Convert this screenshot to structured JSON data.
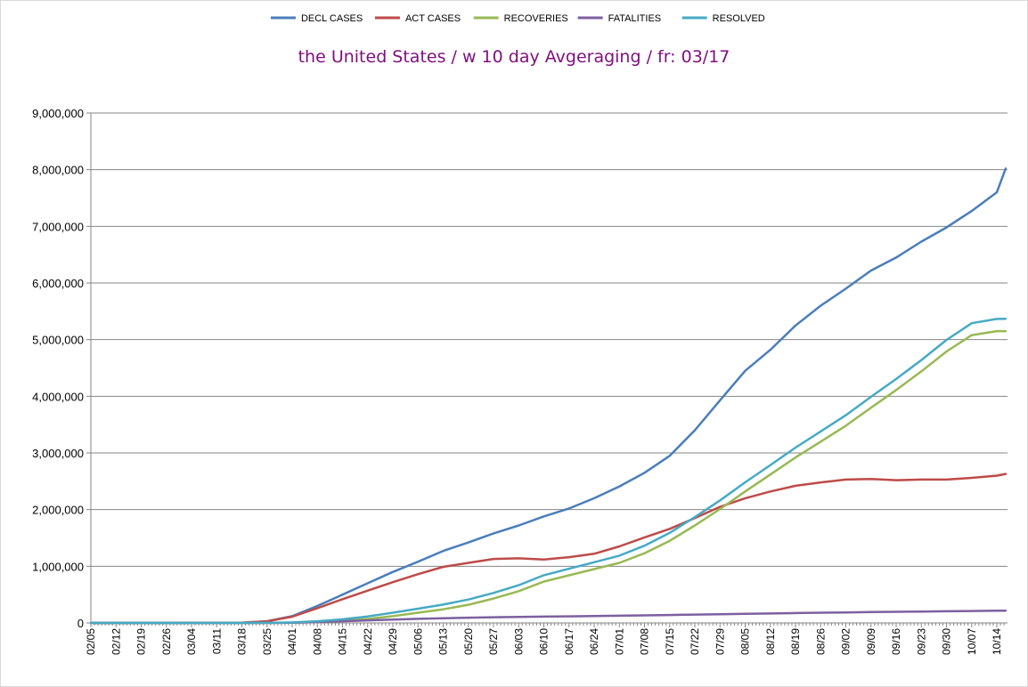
{
  "chart_data": {
    "type": "line",
    "title": "the United States / w 10 day Avgeraging / fr: 03/17",
    "title_color": "#7f0f7e",
    "xlabel": "",
    "ylabel": "",
    "ylim": [
      0,
      9000000
    ],
    "yticks": [
      0,
      1000000,
      2000000,
      3000000,
      4000000,
      5000000,
      6000000,
      7000000,
      8000000,
      9000000
    ],
    "ytick_labels": [
      "0",
      "1,000,000",
      "2,000,000",
      "3,000,000",
      "4,000,000",
      "5,000,000",
      "6,000,000",
      "7,000,000",
      "8,000,000",
      "9,000,000"
    ],
    "x_labels": [
      "02/05",
      "02/12",
      "02/19",
      "02/26",
      "03/04",
      "03/11",
      "03/18",
      "03/25",
      "04/01",
      "04/08",
      "04/15",
      "04/22",
      "04/29",
      "05/06",
      "05/13",
      "05/20",
      "05/27",
      "06/03",
      "06/10",
      "06/17",
      "06/24",
      "07/01",
      "07/08",
      "07/15",
      "07/22",
      "07/29",
      "08/05",
      "08/12",
      "08/19",
      "08/26",
      "09/02",
      "09/09",
      "09/16",
      "09/23",
      "09/30",
      "10/07",
      "10/14"
    ],
    "x_end_weeks": 36.35,
    "grid": true,
    "legend_position": "top",
    "series": [
      {
        "name": "DECL CASES",
        "color": "#4a7ebb",
        "x": [
          0,
          6,
          7,
          8,
          9,
          10,
          11,
          12,
          13,
          14,
          15,
          16,
          17,
          18,
          19,
          20,
          21,
          22,
          23,
          24,
          25,
          26,
          27,
          28,
          29,
          30,
          31,
          32,
          33,
          34,
          35,
          36,
          36.35
        ],
        "values": [
          0,
          5000,
          30000,
          120000,
          300000,
          500000,
          700000,
          900000,
          1080000,
          1270000,
          1420000,
          1580000,
          1720000,
          1880000,
          2020000,
          2200000,
          2410000,
          2650000,
          2950000,
          3400000,
          3930000,
          4450000,
          4820000,
          5250000,
          5600000,
          5900000,
          6220000,
          6450000,
          6730000,
          6980000,
          7270000,
          7600000,
          8020000
        ]
      },
      {
        "name": "ACT CASES",
        "color": "#be4b48",
        "x": [
          0,
          6,
          7,
          8,
          9,
          10,
          11,
          12,
          13,
          14,
          15,
          16,
          17,
          18,
          19,
          20,
          21,
          22,
          23,
          24,
          25,
          26,
          27,
          28,
          29,
          30,
          31,
          32,
          33,
          34,
          35,
          36,
          36.35
        ],
        "values": [
          0,
          5000,
          30000,
          110000,
          260000,
          420000,
          570000,
          720000,
          860000,
          990000,
          1060000,
          1130000,
          1140000,
          1120000,
          1160000,
          1220000,
          1350000,
          1510000,
          1660000,
          1850000,
          2050000,
          2200000,
          2320000,
          2420000,
          2480000,
          2530000,
          2540000,
          2520000,
          2530000,
          2530000,
          2560000,
          2600000,
          2630000
        ]
      },
      {
        "name": "RECOVERIES",
        "color": "#98b954",
        "x": [
          0,
          6,
          7,
          8,
          9,
          10,
          11,
          12,
          13,
          14,
          15,
          16,
          17,
          18,
          19,
          20,
          21,
          22,
          23,
          24,
          25,
          26,
          27,
          28,
          29,
          30,
          31,
          32,
          33,
          34,
          35,
          36,
          36.35
        ],
        "values": [
          0,
          0,
          0,
          5000,
          15000,
          35000,
          70000,
          120000,
          180000,
          240000,
          320000,
          430000,
          560000,
          730000,
          840000,
          950000,
          1060000,
          1230000,
          1450000,
          1720000,
          2010000,
          2320000,
          2620000,
          2920000,
          3200000,
          3480000,
          3800000,
          4110000,
          4440000,
          4790000,
          5080000,
          5150000,
          5150000
        ]
      },
      {
        "name": "FATALITIES",
        "color": "#7d60a0",
        "x": [
          0,
          6,
          7,
          8,
          9,
          10,
          11,
          12,
          13,
          14,
          15,
          16,
          17,
          18,
          19,
          20,
          21,
          22,
          23,
          24,
          25,
          26,
          27,
          28,
          29,
          30,
          31,
          32,
          33,
          34,
          35,
          36,
          36.35
        ],
        "values": [
          0,
          0,
          1000,
          4000,
          15000,
          30000,
          45000,
          60000,
          72000,
          84000,
          93000,
          100000,
          106000,
          112000,
          117000,
          121000,
          127000,
          133000,
          140000,
          147000,
          153000,
          161000,
          167000,
          174000,
          180000,
          186000,
          191000,
          196000,
          200000,
          205000,
          210000,
          215000,
          217000
        ]
      },
      {
        "name": "RESOLVED",
        "color": "#46aac5",
        "x": [
          0,
          6,
          7,
          8,
          9,
          10,
          11,
          12,
          13,
          14,
          15,
          16,
          17,
          18,
          19,
          20,
          21,
          22,
          23,
          24,
          25,
          26,
          27,
          28,
          29,
          30,
          31,
          32,
          33,
          34,
          35,
          36,
          36.35
        ],
        "values": [
          0,
          0,
          1000,
          9000,
          30000,
          65000,
          115000,
          180000,
          252000,
          324000,
          413000,
          530000,
          666000,
          842000,
          957000,
          1071000,
          1187000,
          1363000,
          1590000,
          1867000,
          2163000,
          2481000,
          2787000,
          3094000,
          3380000,
          3666000,
          3991000,
          4306000,
          4640000,
          4995000,
          5290000,
          5365000,
          5367000
        ]
      }
    ]
  }
}
